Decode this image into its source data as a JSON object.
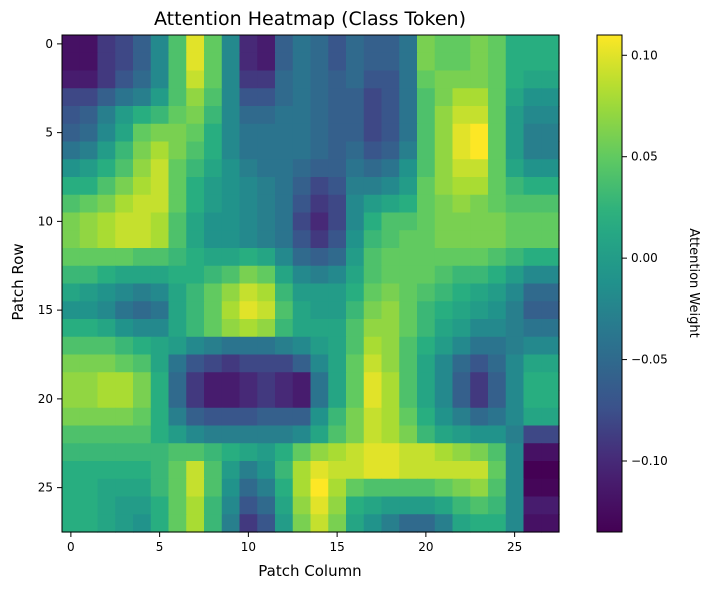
{
  "chart_data": {
    "type": "heatmap",
    "title": "Attention Heatmap (Class Token)",
    "xlabel": "Patch Column",
    "ylabel": "Patch Row",
    "colorbar_label": "Attention Weight",
    "colormap": "viridis",
    "rows": 28,
    "cols": 28,
    "xticks": [
      0,
      5,
      10,
      15,
      20,
      25
    ],
    "yticks": [
      0,
      5,
      10,
      15,
      20,
      25
    ],
    "xtick_labels": [
      "0",
      "5",
      "10",
      "15",
      "20",
      "25"
    ],
    "ytick_labels": [
      "0",
      "5",
      "10",
      "15",
      "20",
      "25"
    ],
    "vmin": -0.135,
    "vmax": 0.11,
    "colorbar_ticks": [
      0.1,
      0.05,
      0.0,
      -0.05,
      -0.1
    ],
    "colorbar_tick_labels": [
      "0.10",
      "0.05",
      "0.00",
      "−0.05",
      "−0.10"
    ],
    "values": [
      [
        -0.12,
        -0.12,
        -0.09,
        -0.08,
        -0.06,
        -0.02,
        0.04,
        0.1,
        0.05,
        -0.02,
        -0.1,
        -0.11,
        -0.06,
        -0.04,
        -0.05,
        -0.07,
        -0.05,
        -0.06,
        -0.06,
        -0.04,
        0.06,
        0.05,
        0.05,
        0.06,
        0.05,
        0.02,
        0.02,
        0.02
      ],
      [
        -0.12,
        -0.12,
        -0.09,
        -0.08,
        -0.06,
        -0.02,
        0.04,
        0.1,
        0.05,
        -0.02,
        -0.1,
        -0.11,
        -0.06,
        -0.04,
        -0.05,
        -0.07,
        -0.05,
        -0.06,
        -0.06,
        -0.04,
        0.06,
        0.05,
        0.05,
        0.06,
        0.05,
        0.02,
        0.02,
        0.02
      ],
      [
        -0.11,
        -0.11,
        -0.09,
        -0.07,
        -0.05,
        -0.02,
        0.04,
        0.09,
        0.05,
        -0.02,
        -0.09,
        -0.09,
        -0.05,
        -0.04,
        -0.05,
        -0.06,
        -0.05,
        -0.07,
        -0.07,
        -0.04,
        0.05,
        0.06,
        0.06,
        0.06,
        0.05,
        0.02,
        0.01,
        0.01
      ],
      [
        -0.08,
        -0.08,
        -0.06,
        -0.04,
        -0.03,
        0.0,
        0.04,
        0.07,
        0.04,
        -0.02,
        -0.07,
        -0.07,
        -0.05,
        -0.04,
        -0.05,
        -0.06,
        -0.06,
        -0.08,
        -0.07,
        -0.04,
        0.04,
        0.06,
        0.08,
        0.08,
        0.05,
        0.01,
        -0.01,
        -0.01
      ],
      [
        -0.07,
        -0.06,
        -0.03,
        0.0,
        0.02,
        0.03,
        0.05,
        0.06,
        0.03,
        -0.02,
        -0.05,
        -0.05,
        -0.04,
        -0.04,
        -0.05,
        -0.06,
        -0.06,
        -0.08,
        -0.07,
        -0.04,
        0.04,
        0.07,
        0.09,
        0.09,
        0.05,
        0.0,
        -0.02,
        -0.02
      ],
      [
        -0.06,
        -0.05,
        -0.02,
        0.01,
        0.05,
        0.06,
        0.06,
        0.05,
        0.02,
        -0.02,
        -0.04,
        -0.04,
        -0.04,
        -0.04,
        -0.05,
        -0.06,
        -0.06,
        -0.08,
        -0.07,
        -0.04,
        0.04,
        0.07,
        0.1,
        0.11,
        0.05,
        0.0,
        -0.03,
        -0.03
      ],
      [
        -0.04,
        -0.03,
        0.0,
        0.03,
        0.06,
        0.08,
        0.06,
        0.04,
        0.02,
        -0.02,
        -0.04,
        -0.04,
        -0.04,
        -0.04,
        -0.05,
        -0.06,
        -0.05,
        -0.07,
        -0.06,
        -0.03,
        0.04,
        0.07,
        0.1,
        0.11,
        0.05,
        0.0,
        -0.03,
        -0.03
      ],
      [
        -0.01,
        0.0,
        0.02,
        0.04,
        0.07,
        0.09,
        0.05,
        0.03,
        0.01,
        -0.01,
        -0.03,
        -0.04,
        -0.04,
        -0.05,
        -0.06,
        -0.06,
        -0.04,
        -0.05,
        -0.04,
        -0.01,
        0.04,
        0.07,
        0.09,
        0.09,
        0.05,
        0.01,
        -0.01,
        -0.01
      ],
      [
        0.02,
        0.02,
        0.04,
        0.06,
        0.08,
        0.09,
        0.05,
        0.02,
        0.0,
        -0.01,
        -0.02,
        -0.03,
        -0.04,
        -0.06,
        -0.08,
        -0.07,
        -0.03,
        -0.03,
        -0.02,
        0.0,
        0.05,
        0.07,
        0.08,
        0.08,
        0.05,
        0.03,
        0.02,
        0.02
      ],
      [
        0.04,
        0.05,
        0.06,
        0.08,
        0.09,
        0.09,
        0.05,
        0.02,
        0.0,
        -0.01,
        -0.02,
        -0.03,
        -0.04,
        -0.07,
        -0.09,
        -0.08,
        -0.02,
        0.0,
        0.01,
        0.02,
        0.05,
        0.06,
        0.07,
        0.06,
        0.05,
        0.04,
        0.04,
        0.04
      ],
      [
        0.06,
        0.07,
        0.08,
        0.09,
        0.09,
        0.08,
        0.04,
        0.01,
        -0.01,
        -0.01,
        -0.02,
        -0.03,
        -0.04,
        -0.08,
        -0.1,
        -0.08,
        -0.02,
        0.02,
        0.04,
        0.04,
        0.05,
        0.06,
        0.06,
        0.06,
        0.06,
        0.05,
        0.05,
        0.05
      ],
      [
        0.06,
        0.07,
        0.08,
        0.09,
        0.09,
        0.08,
        0.04,
        0.01,
        -0.01,
        -0.01,
        -0.02,
        -0.03,
        -0.04,
        -0.07,
        -0.09,
        -0.07,
        -0.01,
        0.03,
        0.04,
        0.05,
        0.05,
        0.06,
        0.06,
        0.06,
        0.06,
        0.05,
        0.05,
        0.05
      ],
      [
        0.05,
        0.05,
        0.05,
        0.05,
        0.04,
        0.04,
        0.03,
        0.02,
        0.01,
        0.01,
        0.02,
        0.01,
        -0.02,
        -0.05,
        -0.06,
        -0.05,
        0.0,
        0.04,
        0.05,
        0.05,
        0.05,
        0.05,
        0.05,
        0.05,
        0.04,
        0.03,
        0.02,
        0.02
      ],
      [
        0.03,
        0.03,
        0.02,
        0.01,
        0.01,
        0.01,
        0.02,
        0.02,
        0.03,
        0.04,
        0.06,
        0.05,
        0.01,
        -0.02,
        -0.03,
        -0.02,
        0.01,
        0.04,
        0.05,
        0.05,
        0.05,
        0.04,
        0.03,
        0.03,
        0.02,
        0.0,
        -0.02,
        -0.02
      ],
      [
        0.01,
        0.0,
        -0.01,
        -0.02,
        -0.03,
        -0.02,
        0.01,
        0.03,
        0.05,
        0.07,
        0.09,
        0.08,
        0.03,
        0.0,
        0.0,
        0.0,
        0.02,
        0.05,
        0.06,
        0.05,
        0.04,
        0.03,
        0.02,
        0.01,
        0.0,
        -0.02,
        -0.05,
        -0.05
      ],
      [
        -0.01,
        -0.01,
        -0.02,
        -0.04,
        -0.05,
        -0.04,
        0.01,
        0.03,
        0.05,
        0.08,
        0.1,
        0.09,
        0.04,
        0.01,
        0.0,
        0.0,
        0.03,
        0.06,
        0.07,
        0.05,
        0.03,
        0.02,
        0.01,
        0.0,
        -0.01,
        -0.03,
        -0.06,
        -0.06
      ],
      [
        0.02,
        0.02,
        0.01,
        -0.01,
        -0.02,
        -0.02,
        0.01,
        0.03,
        0.05,
        0.07,
        0.08,
        0.07,
        0.03,
        0.01,
        0.01,
        0.01,
        0.04,
        0.07,
        0.07,
        0.05,
        0.03,
        0.01,
        0.0,
        -0.02,
        -0.02,
        -0.03,
        -0.04,
        -0.04
      ],
      [
        0.04,
        0.04,
        0.04,
        0.03,
        0.02,
        0.01,
        0.0,
        -0.02,
        -0.03,
        -0.04,
        -0.04,
        -0.04,
        -0.03,
        -0.02,
        0.0,
        0.01,
        0.04,
        0.08,
        0.07,
        0.04,
        0.02,
        0.0,
        -0.02,
        -0.04,
        -0.04,
        -0.03,
        -0.02,
        -0.02
      ],
      [
        0.06,
        0.06,
        0.06,
        0.05,
        0.04,
        0.01,
        -0.04,
        -0.07,
        -0.08,
        -0.09,
        -0.08,
        -0.08,
        -0.08,
        -0.06,
        -0.02,
        0.01,
        0.05,
        0.09,
        0.07,
        0.04,
        0.01,
        -0.02,
        -0.05,
        -0.07,
        -0.05,
        -0.02,
        0.01,
        0.01
      ],
      [
        0.07,
        0.07,
        0.08,
        0.08,
        0.06,
        0.02,
        -0.05,
        -0.09,
        -0.11,
        -0.11,
        -0.1,
        -0.09,
        -0.1,
        -0.11,
        -0.04,
        0.01,
        0.05,
        0.1,
        0.08,
        0.04,
        0.01,
        -0.02,
        -0.06,
        -0.09,
        -0.06,
        -0.02,
        0.02,
        0.02
      ],
      [
        0.07,
        0.07,
        0.08,
        0.08,
        0.06,
        0.02,
        -0.05,
        -0.09,
        -0.11,
        -0.11,
        -0.1,
        -0.09,
        -0.1,
        -0.11,
        -0.04,
        0.01,
        0.05,
        0.1,
        0.08,
        0.04,
        0.01,
        -0.02,
        -0.06,
        -0.09,
        -0.06,
        -0.02,
        0.02,
        0.02
      ],
      [
        0.06,
        0.06,
        0.06,
        0.06,
        0.05,
        0.02,
        -0.03,
        -0.06,
        -0.07,
        -0.07,
        -0.07,
        -0.06,
        -0.06,
        -0.06,
        -0.01,
        0.03,
        0.06,
        0.09,
        0.08,
        0.05,
        0.02,
        -0.01,
        -0.03,
        -0.05,
        -0.04,
        -0.02,
        0.01,
        0.01
      ],
      [
        0.04,
        0.04,
        0.04,
        0.04,
        0.04,
        0.02,
        0.0,
        -0.02,
        -0.03,
        -0.03,
        -0.03,
        -0.03,
        -0.03,
        -0.02,
        0.01,
        0.04,
        0.06,
        0.09,
        0.08,
        0.06,
        0.03,
        0.01,
        0.0,
        -0.01,
        -0.01,
        -0.03,
        -0.08,
        -0.08
      ],
      [
        0.03,
        0.03,
        0.03,
        0.03,
        0.03,
        0.03,
        0.04,
        0.04,
        0.03,
        0.02,
        0.01,
        0.0,
        0.02,
        0.05,
        0.07,
        0.08,
        0.09,
        0.1,
        0.1,
        0.09,
        0.09,
        0.08,
        0.07,
        0.06,
        0.04,
        -0.02,
        -0.12,
        -0.12
      ],
      [
        0.02,
        0.02,
        0.02,
        0.02,
        0.02,
        0.03,
        0.05,
        0.09,
        0.04,
        0.0,
        -0.03,
        -0.01,
        0.03,
        0.08,
        0.1,
        0.09,
        0.09,
        0.1,
        0.1,
        0.09,
        0.09,
        0.09,
        0.09,
        0.09,
        0.05,
        -0.02,
        -0.14,
        -0.14
      ],
      [
        0.02,
        0.02,
        0.01,
        0.01,
        0.01,
        0.03,
        0.05,
        0.09,
        0.04,
        -0.01,
        -0.05,
        -0.03,
        0.02,
        0.08,
        0.11,
        0.08,
        0.05,
        0.04,
        0.04,
        0.04,
        0.04,
        0.05,
        0.06,
        0.07,
        0.04,
        -0.02,
        -0.13,
        -0.13
      ],
      [
        0.02,
        0.02,
        0.01,
        0.0,
        0.0,
        0.02,
        0.05,
        0.08,
        0.03,
        -0.02,
        -0.07,
        -0.05,
        0.01,
        0.07,
        0.1,
        0.07,
        0.02,
        0.01,
        0.0,
        0.0,
        0.0,
        0.01,
        0.03,
        0.04,
        0.03,
        -0.02,
        -0.11,
        -0.11
      ],
      [
        0.02,
        0.02,
        0.01,
        0.0,
        -0.01,
        0.02,
        0.05,
        0.08,
        0.03,
        -0.03,
        -0.09,
        -0.07,
        0.0,
        0.06,
        0.09,
        0.06,
        0.01,
        -0.01,
        -0.03,
        -0.05,
        -0.05,
        -0.03,
        0.01,
        0.02,
        0.02,
        -0.02,
        -0.12,
        -0.12
      ]
    ]
  }
}
